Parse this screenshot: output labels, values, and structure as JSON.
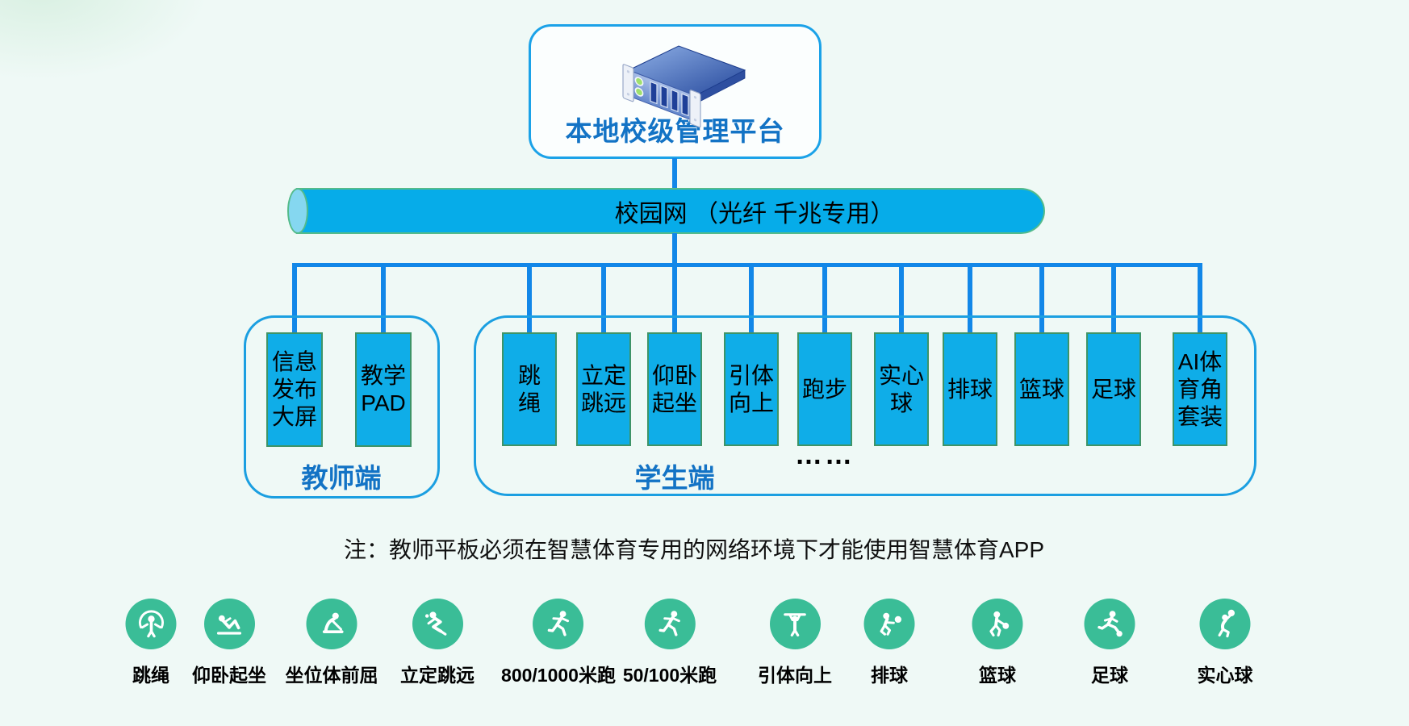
{
  "colors": {
    "background": "#EFF9F6",
    "connector_blue": "#1287E8",
    "device_fill": "#0FADE8",
    "device_border": "#3E9467",
    "group_border": "#1B9FE1",
    "label_blue": "#1373C5",
    "bus_fill": "#06ACE9",
    "bus_cap_fill": "#85D7F0",
    "bus_border": "#54BB8B",
    "sport_icon_green": "#3ABD97"
  },
  "platform": {
    "title": "本地校级管理平台",
    "icon": "server-icon"
  },
  "network_bus": {
    "label": "校园网 （光纤 千兆专用）"
  },
  "teacher_group": {
    "label": "教师端",
    "devices": [
      {
        "name": "info-display-screen",
        "lines": [
          "信息",
          "发布",
          "大屏"
        ]
      },
      {
        "name": "teaching-pad",
        "lines": [
          "教学",
          "PAD"
        ]
      }
    ]
  },
  "student_group": {
    "label": "学生端",
    "ellipsis": "……",
    "devices": [
      {
        "name": "jump-rope",
        "lines": [
          "跳",
          "绳"
        ]
      },
      {
        "name": "standing-long-jump",
        "lines": [
          "立定",
          "跳远"
        ]
      },
      {
        "name": "sit-ups",
        "lines": [
          "仰卧",
          "起坐"
        ]
      },
      {
        "name": "pull-up",
        "lines": [
          "引体",
          "向上"
        ]
      },
      {
        "name": "running",
        "lines": [
          "跑步"
        ]
      },
      {
        "name": "medicine-ball",
        "lines": [
          "实心",
          "球"
        ]
      },
      {
        "name": "volleyball",
        "lines": [
          "排球"
        ]
      },
      {
        "name": "basketball",
        "lines": [
          "篮球"
        ]
      },
      {
        "name": "football",
        "lines": [
          "足球"
        ]
      },
      {
        "name": "ai-sports-corner-kit",
        "lines": [
          "AI体",
          "育角",
          "套装"
        ]
      }
    ]
  },
  "note": "注：教师平板必须在智慧体育专用的网络环境下才能使用智慧体育APP",
  "sports_icons": [
    {
      "name": "jump-rope",
      "icon": "jump-rope-icon",
      "label": "跳绳"
    },
    {
      "name": "sit-ups",
      "icon": "sit-ups-icon",
      "label": "仰卧起坐"
    },
    {
      "name": "sit-and-reach",
      "icon": "sit-and-reach-icon",
      "label": "坐位体前屈"
    },
    {
      "name": "standing-long-jump",
      "icon": "standing-long-jump-icon",
      "label": "立定跳远"
    },
    {
      "name": "run-800-1000m",
      "icon": "runner-icon",
      "label": "800/1000米跑"
    },
    {
      "name": "run-50-100m",
      "icon": "runner-icon",
      "label": "50/100米跑"
    },
    {
      "name": "pull-up",
      "icon": "pull-up-icon",
      "label": "引体向上"
    },
    {
      "name": "volleyball",
      "icon": "volleyball-icon",
      "label": "排球"
    },
    {
      "name": "basketball",
      "icon": "basketball-icon",
      "label": "篮球"
    },
    {
      "name": "football",
      "icon": "football-icon",
      "label": "足球"
    },
    {
      "name": "medicine-ball",
      "icon": "medicine-ball-icon",
      "label": "实心球"
    }
  ]
}
